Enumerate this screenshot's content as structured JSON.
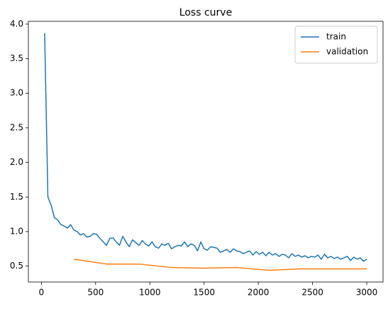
{
  "chart_data": {
    "type": "line",
    "title": "Loss curve",
    "series": [
      {
        "name": "train",
        "color": "#1f77b4",
        "x": [
          30,
          60,
          90,
          120,
          150,
          180,
          210,
          240,
          270,
          300,
          330,
          360,
          390,
          420,
          450,
          480,
          510,
          540,
          570,
          600,
          630,
          660,
          690,
          720,
          750,
          780,
          810,
          840,
          870,
          900,
          930,
          960,
          990,
          1020,
          1050,
          1080,
          1110,
          1140,
          1170,
          1200,
          1230,
          1260,
          1290,
          1320,
          1350,
          1380,
          1410,
          1440,
          1470,
          1500,
          1530,
          1560,
          1590,
          1620,
          1650,
          1680,
          1710,
          1740,
          1770,
          1800,
          1830,
          1860,
          1890,
          1920,
          1950,
          1980,
          2010,
          2040,
          2070,
          2100,
          2130,
          2160,
          2190,
          2220,
          2250,
          2280,
          2310,
          2340,
          2370,
          2400,
          2430,
          2460,
          2490,
          2520,
          2550,
          2580,
          2610,
          2640,
          2670,
          2700,
          2730,
          2760,
          2790,
          2820,
          2850,
          2880,
          2910,
          2940,
          2970,
          3000
        ],
        "values": [
          3.87,
          1.5,
          1.38,
          1.2,
          1.17,
          1.1,
          1.08,
          1.05,
          1.1,
          1.02,
          1.0,
          0.95,
          0.97,
          0.92,
          0.93,
          0.97,
          0.96,
          0.9,
          0.85,
          0.8,
          0.9,
          0.91,
          0.85,
          0.8,
          0.93,
          0.85,
          0.78,
          0.88,
          0.84,
          0.8,
          0.87,
          0.82,
          0.79,
          0.85,
          0.78,
          0.76,
          0.82,
          0.8,
          0.83,
          0.75,
          0.78,
          0.8,
          0.79,
          0.85,
          0.78,
          0.82,
          0.8,
          0.72,
          0.85,
          0.75,
          0.73,
          0.78,
          0.77,
          0.76,
          0.7,
          0.72,
          0.74,
          0.7,
          0.75,
          0.72,
          0.71,
          0.68,
          0.7,
          0.72,
          0.66,
          0.71,
          0.67,
          0.7,
          0.65,
          0.7,
          0.66,
          0.68,
          0.64,
          0.67,
          0.66,
          0.62,
          0.68,
          0.64,
          0.66,
          0.63,
          0.65,
          0.62,
          0.64,
          0.63,
          0.66,
          0.6,
          0.67,
          0.62,
          0.64,
          0.61,
          0.63,
          0.6,
          0.62,
          0.64,
          0.58,
          0.63,
          0.6,
          0.62,
          0.57,
          0.6
        ]
      },
      {
        "name": "validation",
        "color": "#ff7f0e",
        "x": [
          300,
          600,
          900,
          1200,
          1500,
          1800,
          2100,
          2400,
          2700,
          3000
        ],
        "values": [
          0.6,
          0.53,
          0.53,
          0.48,
          0.47,
          0.48,
          0.44,
          0.46,
          0.46,
          0.46
        ]
      }
    ],
    "xlim": [
      -120,
      3150
    ],
    "xticks": [
      0,
      500,
      1000,
      1500,
      2000,
      2500,
      3000
    ],
    "ylim": [
      0.27,
      4.04
    ],
    "yticks": [
      0.5,
      {
        "value": 1,
        "label": "1.0"
      },
      1.5,
      {
        "value": 2,
        "label": "2.0"
      },
      2.5,
      {
        "value": 3,
        "label": "3.0"
      },
      3.5,
      {
        "value": 4,
        "label": "4.0"
      }
    ],
    "legend": "upper right",
    "grid": false
  }
}
